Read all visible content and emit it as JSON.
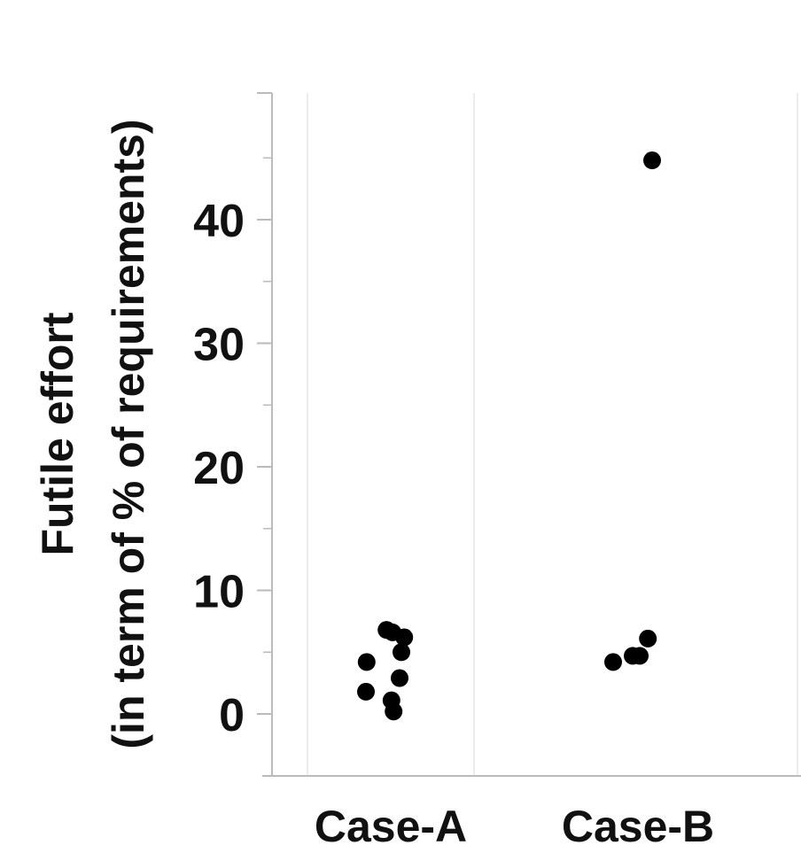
{
  "chart_data": {
    "type": "scatter",
    "title": "",
    "ylabel_line1": "Futile effort",
    "ylabel_line2": "(in term of % of requirements)",
    "xlabel": "",
    "categories": [
      "Case-A",
      "Case-B"
    ],
    "ylim": [
      -5,
      50
    ],
    "yticks": [
      0,
      10,
      20,
      30,
      40
    ],
    "y_minor_ticks": [
      -5,
      5,
      15,
      25,
      35,
      45
    ],
    "grid": "vertical category separators",
    "series": [
      {
        "category": "Case-A",
        "points": [
          {
            "jitter": -0.7,
            "y": 1.8
          },
          {
            "jitter": -0.68,
            "y": 4.2
          },
          {
            "jitter": -0.12,
            "y": 6.8
          },
          {
            "jitter": 0.05,
            "y": 6.6
          },
          {
            "jitter": 0.38,
            "y": 6.2
          },
          {
            "jitter": 0.3,
            "y": 5.0
          },
          {
            "jitter": 0.25,
            "y": 2.9
          },
          {
            "jitter": 0.02,
            "y": 1.1
          },
          {
            "jitter": 0.08,
            "y": 0.2
          }
        ]
      },
      {
        "category": "Case-B",
        "points": [
          {
            "jitter": 0.4,
            "y": 44.8
          },
          {
            "jitter": -0.7,
            "y": 4.2
          },
          {
            "jitter": -0.15,
            "y": 4.7
          },
          {
            "jitter": 0.05,
            "y": 4.7
          },
          {
            "jitter": 0.28,
            "y": 6.1
          }
        ]
      }
    ],
    "marker_color": "#000000",
    "axis_color": "#bbbbbb",
    "grid_color": "#e6e6e6"
  }
}
